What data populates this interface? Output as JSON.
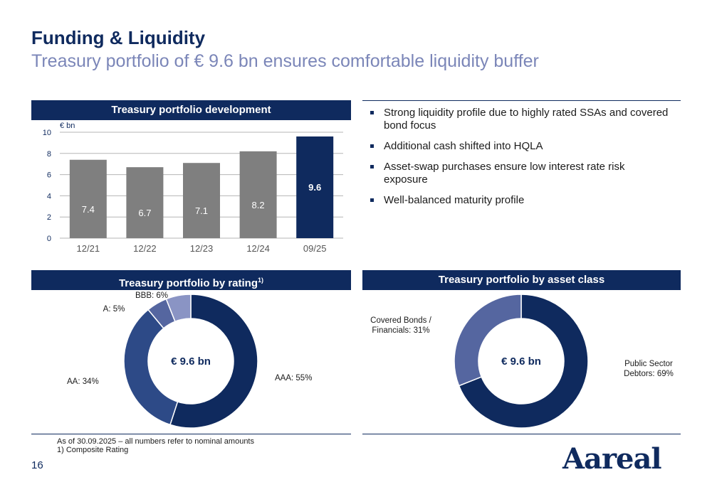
{
  "header": {
    "title": "Funding & Liquidity",
    "subtitle": "Treasury portfolio of € 9.6 bn ensures comfortable liquidity buffer"
  },
  "bar_panel": {
    "title": "Treasury portfolio development"
  },
  "rating_panel": {
    "title": "Treasury portfolio by rating",
    "title_sup": "1)"
  },
  "asset_panel": {
    "title": "Treasury portfolio by asset class"
  },
  "bullets": [
    "Strong liquidity profile due to highly rated SSAs and covered bond focus",
    "Additional cash shifted into HQLA",
    "Asset-swap purchases ensure low interest rate risk exposure",
    "Well-balanced maturity profile"
  ],
  "colors": {
    "navy": "#0f2a5e",
    "grey_bar": "#7f7f7f",
    "mid_blue": "#2d4a87",
    "slate_blue": "#5566a0",
    "light_blue": "#8a94c4"
  },
  "chart_data": [
    {
      "type": "bar",
      "unit": "€ bn",
      "categories": [
        "12/21",
        "12/22",
        "12/23",
        "12/24",
        "09/25"
      ],
      "values": [
        7.4,
        6.7,
        7.1,
        8.2,
        9.6
      ],
      "value_labels": [
        "7.4",
        "6.7",
        "7.1",
        "8.2",
        "9.6"
      ],
      "ylim": [
        0,
        10
      ],
      "yticks": [
        "0",
        "2",
        "4",
        "6",
        "8",
        "10"
      ],
      "grid": true,
      "highlight_last": true
    },
    {
      "type": "pie",
      "center_label": "€ 9.6 bn",
      "slices": [
        {
          "label": "AAA:  55%",
          "value": 55,
          "color": "#0f2a5e"
        },
        {
          "label": "AA:  34%",
          "value": 34,
          "color": "#2d4a87"
        },
        {
          "label": "A:  5%",
          "value": 5,
          "color": "#5566a0"
        },
        {
          "label": "BBB:  6%",
          "value": 6,
          "color": "#8a94c4"
        }
      ]
    },
    {
      "type": "pie",
      "center_label": "€ 9.6 bn",
      "slices": [
        {
          "label_lines": [
            "Public Sector",
            "Debtors:  69%"
          ],
          "value": 69,
          "color": "#0f2a5e"
        },
        {
          "label_lines": [
            "Covered Bonds /",
            "Financials:  31%"
          ],
          "value": 31,
          "color": "#5566a0"
        }
      ]
    }
  ],
  "footnote": {
    "line1": "As of 30.09.2025 – all numbers refer to nominal amounts",
    "line2": "1)   Composite Rating"
  },
  "page_number": "16",
  "logo": "Aareal"
}
